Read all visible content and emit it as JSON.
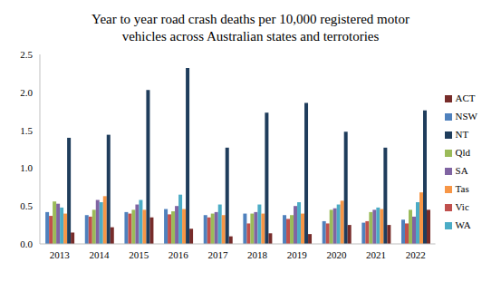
{
  "chart_data": {
    "type": "bar",
    "title": "Year to year road crash deaths per 10,000 registered motor vehicles across Australian states and terrotories",
    "categories": [
      "2013",
      "2014",
      "2015",
      "2016",
      "2017",
      "2018",
      "2019",
      "2020",
      "2021",
      "2022"
    ],
    "series": [
      {
        "name": "NSW",
        "color": "#4f81bd",
        "values": [
          0.42,
          0.38,
          0.42,
          0.46,
          0.38,
          0.4,
          0.38,
          0.3,
          0.28,
          0.32
        ]
      },
      {
        "name": "Vic",
        "color": "#c0504d",
        "values": [
          0.37,
          0.36,
          0.4,
          0.39,
          0.35,
          0.27,
          0.33,
          0.27,
          0.3,
          0.27
        ]
      },
      {
        "name": "Qld",
        "color": "#9bbb59",
        "values": [
          0.56,
          0.45,
          0.45,
          0.43,
          0.4,
          0.4,
          0.38,
          0.45,
          0.42,
          0.45
        ]
      },
      {
        "name": "SA",
        "color": "#8064a2",
        "values": [
          0.53,
          0.58,
          0.52,
          0.5,
          0.42,
          0.42,
          0.5,
          0.47,
          0.45,
          0.36
        ]
      },
      {
        "name": "WA",
        "color": "#4bacc6",
        "values": [
          0.48,
          0.55,
          0.58,
          0.65,
          0.52,
          0.52,
          0.55,
          0.52,
          0.48,
          0.55
        ]
      },
      {
        "name": "Tas",
        "color": "#f79646",
        "values": [
          0.4,
          0.63,
          0.45,
          0.46,
          0.38,
          0.4,
          0.4,
          0.57,
          0.46,
          0.68
        ]
      },
      {
        "name": "NT",
        "color": "#1f3d5c",
        "values": [
          1.4,
          1.44,
          2.03,
          2.32,
          1.27,
          1.73,
          1.86,
          1.48,
          1.27,
          1.76
        ]
      },
      {
        "name": "ACT",
        "color": "#772c2a",
        "values": [
          0.15,
          0.22,
          0.35,
          0.2,
          0.1,
          0.14,
          0.13,
          0.25,
          0.25,
          0.45
        ]
      }
    ],
    "ylim": [
      0,
      2.5
    ],
    "yticks": [
      {
        "value": 0,
        "label": "0.0"
      },
      {
        "value": 0.5,
        "label": "0.5"
      },
      {
        "value": 1,
        "label": "1.0"
      },
      {
        "value": 1.5,
        "label": "1.5"
      },
      {
        "value": 2,
        "label": "2.0"
      },
      {
        "value": 2.5,
        "label": "2.5"
      }
    ],
    "grid": false,
    "legend": "right"
  }
}
